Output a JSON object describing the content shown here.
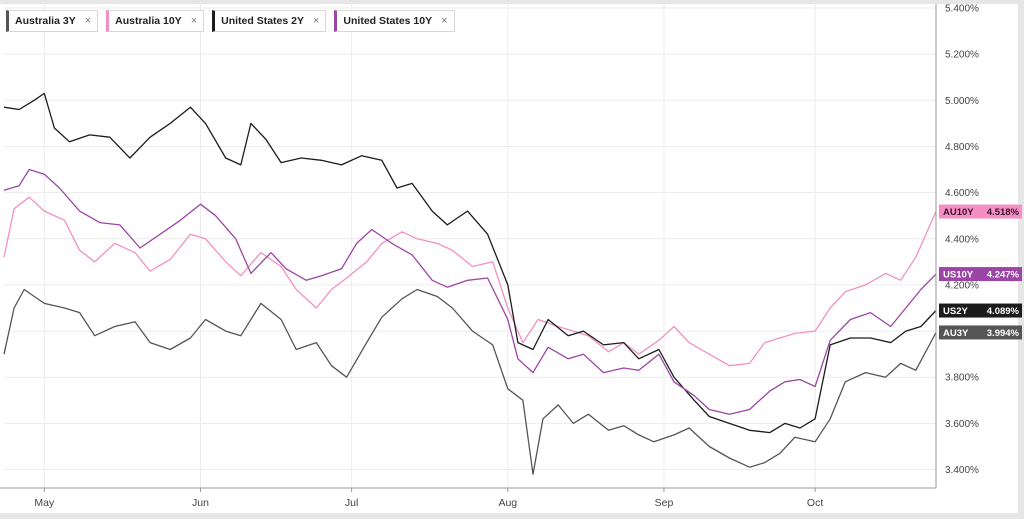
{
  "colors": {
    "australia_3y": "#555555",
    "australia_10y": "#f48fc4",
    "united_states_2y": "#1c1c1c",
    "united_states_10y": "#9b45a5"
  },
  "legend": [
    {
      "label": "Australia 3Y",
      "color": "#555555",
      "remove": "×"
    },
    {
      "label": "Australia 10Y",
      "color": "#f48fc4",
      "remove": "×"
    },
    {
      "label": "United States 2Y",
      "color": "#1c1c1c",
      "remove": "×"
    },
    {
      "label": "United States 10Y",
      "color": "#9b45a5",
      "remove": "×"
    }
  ],
  "chart_data": {
    "type": "line",
    "title": "",
    "xlabel": "",
    "ylabel": "",
    "ylim": [
      3.32,
      5.4
    ],
    "y_ticks": [
      {
        "value": 3.4,
        "label": "3.400%"
      },
      {
        "value": 3.6,
        "label": "3.600%"
      },
      {
        "value": 3.8,
        "label": "3.800%"
      },
      {
        "value": 4.0,
        "label": "4.000%"
      },
      {
        "value": 4.2,
        "label": "4.200%"
      },
      {
        "value": 4.4,
        "label": "4.400%"
      },
      {
        "value": 4.6,
        "label": "4.600%"
      },
      {
        "value": 4.8,
        "label": "4.800%"
      },
      {
        "value": 5.0,
        "label": "5.000%"
      },
      {
        "value": 5.2,
        "label": "5.200%"
      },
      {
        "value": 5.4,
        "label": "5.400%"
      }
    ],
    "x_range": [
      "2024-04-23",
      "2024-10-25"
    ],
    "x_ticks": [
      {
        "date": "2024-05-01",
        "label": "May"
      },
      {
        "date": "2024-06-01",
        "label": "Jun"
      },
      {
        "date": "2024-07-01",
        "label": "Jul"
      },
      {
        "date": "2024-08-01",
        "label": "Aug"
      },
      {
        "date": "2024-09-01",
        "label": "Sep"
      },
      {
        "date": "2024-10-01",
        "label": "Oct"
      }
    ],
    "grid": true,
    "legend_position": "top-left",
    "series": [
      {
        "name": "Australia 3Y",
        "color": "#555555",
        "tag": "AU3Y",
        "last_label": "3.994%",
        "points": [
          [
            "2024-04-23",
            3.9
          ],
          [
            "2024-04-25",
            4.1
          ],
          [
            "2024-04-27",
            4.18
          ],
          [
            "2024-05-01",
            4.12
          ],
          [
            "2024-05-05",
            4.1
          ],
          [
            "2024-05-08",
            4.08
          ],
          [
            "2024-05-11",
            3.98
          ],
          [
            "2024-05-15",
            4.02
          ],
          [
            "2024-05-19",
            4.04
          ],
          [
            "2024-05-22",
            3.95
          ],
          [
            "2024-05-26",
            3.92
          ],
          [
            "2024-05-30",
            3.97
          ],
          [
            "2024-06-02",
            4.05
          ],
          [
            "2024-06-06",
            4.0
          ],
          [
            "2024-06-09",
            3.98
          ],
          [
            "2024-06-13",
            4.12
          ],
          [
            "2024-06-17",
            4.05
          ],
          [
            "2024-06-20",
            3.92
          ],
          [
            "2024-06-24",
            3.95
          ],
          [
            "2024-06-27",
            3.85
          ],
          [
            "2024-06-30",
            3.8
          ],
          [
            "2024-07-04",
            3.95
          ],
          [
            "2024-07-07",
            4.06
          ],
          [
            "2024-07-11",
            4.14
          ],
          [
            "2024-07-14",
            4.18
          ],
          [
            "2024-07-18",
            4.15
          ],
          [
            "2024-07-21",
            4.1
          ],
          [
            "2024-07-25",
            4.0
          ],
          [
            "2024-07-29",
            3.94
          ],
          [
            "2024-08-01",
            3.75
          ],
          [
            "2024-08-04",
            3.7
          ],
          [
            "2024-08-06",
            3.38
          ],
          [
            "2024-08-08",
            3.62
          ],
          [
            "2024-08-11",
            3.68
          ],
          [
            "2024-08-14",
            3.6
          ],
          [
            "2024-08-17",
            3.64
          ],
          [
            "2024-08-21",
            3.57
          ],
          [
            "2024-08-24",
            3.59
          ],
          [
            "2024-08-27",
            3.55
          ],
          [
            "2024-08-30",
            3.52
          ],
          [
            "2024-09-03",
            3.55
          ],
          [
            "2024-09-06",
            3.58
          ],
          [
            "2024-09-10",
            3.5
          ],
          [
            "2024-09-14",
            3.45
          ],
          [
            "2024-09-18",
            3.41
          ],
          [
            "2024-09-21",
            3.43
          ],
          [
            "2024-09-24",
            3.47
          ],
          [
            "2024-09-27",
            3.54
          ],
          [
            "2024-10-01",
            3.52
          ],
          [
            "2024-10-04",
            3.62
          ],
          [
            "2024-10-07",
            3.78
          ],
          [
            "2024-10-11",
            3.82
          ],
          [
            "2024-10-15",
            3.8
          ],
          [
            "2024-10-18",
            3.86
          ],
          [
            "2024-10-21",
            3.83
          ],
          [
            "2024-10-25",
            3.994
          ]
        ]
      },
      {
        "name": "Australia 10Y",
        "color": "#f48fc4",
        "tag": "AU10Y",
        "last_label": "4.518%",
        "points": [
          [
            "2024-04-23",
            4.32
          ],
          [
            "2024-04-25",
            4.53
          ],
          [
            "2024-04-28",
            4.58
          ],
          [
            "2024-05-01",
            4.52
          ],
          [
            "2024-05-05",
            4.48
          ],
          [
            "2024-05-08",
            4.35
          ],
          [
            "2024-05-11",
            4.3
          ],
          [
            "2024-05-15",
            4.38
          ],
          [
            "2024-05-19",
            4.34
          ],
          [
            "2024-05-22",
            4.26
          ],
          [
            "2024-05-26",
            4.31
          ],
          [
            "2024-05-30",
            4.42
          ],
          [
            "2024-06-02",
            4.4
          ],
          [
            "2024-06-06",
            4.3
          ],
          [
            "2024-06-09",
            4.24
          ],
          [
            "2024-06-13",
            4.34
          ],
          [
            "2024-06-17",
            4.28
          ],
          [
            "2024-06-20",
            4.18
          ],
          [
            "2024-06-24",
            4.1
          ],
          [
            "2024-06-27",
            4.18
          ],
          [
            "2024-06-30",
            4.23
          ],
          [
            "2024-07-04",
            4.3
          ],
          [
            "2024-07-07",
            4.38
          ],
          [
            "2024-07-11",
            4.43
          ],
          [
            "2024-07-14",
            4.4
          ],
          [
            "2024-07-18",
            4.38
          ],
          [
            "2024-07-21",
            4.35
          ],
          [
            "2024-07-25",
            4.28
          ],
          [
            "2024-07-29",
            4.3
          ],
          [
            "2024-08-01",
            4.1
          ],
          [
            "2024-08-04",
            3.95
          ],
          [
            "2024-08-07",
            4.05
          ],
          [
            "2024-08-11",
            4.02
          ],
          [
            "2024-08-14",
            4.0
          ],
          [
            "2024-08-17",
            3.98
          ],
          [
            "2024-08-21",
            3.91
          ],
          [
            "2024-08-24",
            3.95
          ],
          [
            "2024-08-27",
            3.9
          ],
          [
            "2024-08-31",
            3.96
          ],
          [
            "2024-09-03",
            4.02
          ],
          [
            "2024-09-06",
            3.95
          ],
          [
            "2024-09-10",
            3.9
          ],
          [
            "2024-09-14",
            3.85
          ],
          [
            "2024-09-18",
            3.86
          ],
          [
            "2024-09-21",
            3.95
          ],
          [
            "2024-09-24",
            3.97
          ],
          [
            "2024-09-27",
            3.99
          ],
          [
            "2024-10-01",
            4.0
          ],
          [
            "2024-10-04",
            4.1
          ],
          [
            "2024-10-07",
            4.17
          ],
          [
            "2024-10-11",
            4.2
          ],
          [
            "2024-10-15",
            4.25
          ],
          [
            "2024-10-18",
            4.22
          ],
          [
            "2024-10-21",
            4.32
          ],
          [
            "2024-10-25",
            4.518
          ]
        ]
      },
      {
        "name": "United States 2Y",
        "color": "#1c1c1c",
        "tag": "US2Y",
        "last_label": "4.089%",
        "points": [
          [
            "2024-04-23",
            4.97
          ],
          [
            "2024-04-26",
            4.96
          ],
          [
            "2024-04-29",
            5.0
          ],
          [
            "2024-05-01",
            5.03
          ],
          [
            "2024-05-03",
            4.88
          ],
          [
            "2024-05-06",
            4.82
          ],
          [
            "2024-05-10",
            4.85
          ],
          [
            "2024-05-14",
            4.84
          ],
          [
            "2024-05-18",
            4.75
          ],
          [
            "2024-05-22",
            4.84
          ],
          [
            "2024-05-26",
            4.9
          ],
          [
            "2024-05-30",
            4.97
          ],
          [
            "2024-06-02",
            4.9
          ],
          [
            "2024-06-06",
            4.75
          ],
          [
            "2024-06-09",
            4.72
          ],
          [
            "2024-06-11",
            4.9
          ],
          [
            "2024-06-14",
            4.83
          ],
          [
            "2024-06-17",
            4.73
          ],
          [
            "2024-06-21",
            4.75
          ],
          [
            "2024-06-25",
            4.74
          ],
          [
            "2024-06-29",
            4.72
          ],
          [
            "2024-07-03",
            4.76
          ],
          [
            "2024-07-07",
            4.74
          ],
          [
            "2024-07-10",
            4.62
          ],
          [
            "2024-07-13",
            4.64
          ],
          [
            "2024-07-17",
            4.52
          ],
          [
            "2024-07-20",
            4.46
          ],
          [
            "2024-07-24",
            4.52
          ],
          [
            "2024-07-28",
            4.42
          ],
          [
            "2024-08-01",
            4.2
          ],
          [
            "2024-08-03",
            3.95
          ],
          [
            "2024-08-06",
            3.92
          ],
          [
            "2024-08-09",
            4.05
          ],
          [
            "2024-08-13",
            3.98
          ],
          [
            "2024-08-16",
            4.0
          ],
          [
            "2024-08-20",
            3.94
          ],
          [
            "2024-08-24",
            3.95
          ],
          [
            "2024-08-27",
            3.88
          ],
          [
            "2024-08-31",
            3.92
          ],
          [
            "2024-09-03",
            3.8
          ],
          [
            "2024-09-07",
            3.7
          ],
          [
            "2024-09-10",
            3.63
          ],
          [
            "2024-09-14",
            3.6
          ],
          [
            "2024-09-18",
            3.57
          ],
          [
            "2024-09-22",
            3.56
          ],
          [
            "2024-09-25",
            3.6
          ],
          [
            "2024-09-28",
            3.58
          ],
          [
            "2024-10-01",
            3.62
          ],
          [
            "2024-10-04",
            3.94
          ],
          [
            "2024-10-08",
            3.97
          ],
          [
            "2024-10-12",
            3.97
          ],
          [
            "2024-10-16",
            3.95
          ],
          [
            "2024-10-19",
            4.0
          ],
          [
            "2024-10-22",
            4.02
          ],
          [
            "2024-10-25",
            4.089
          ]
        ]
      },
      {
        "name": "United States 10Y",
        "color": "#9b45a5",
        "tag": "US10Y",
        "last_label": "4.247%",
        "points": [
          [
            "2024-04-23",
            4.61
          ],
          [
            "2024-04-26",
            4.63
          ],
          [
            "2024-04-28",
            4.7
          ],
          [
            "2024-05-01",
            4.68
          ],
          [
            "2024-05-04",
            4.62
          ],
          [
            "2024-05-08",
            4.52
          ],
          [
            "2024-05-12",
            4.47
          ],
          [
            "2024-05-16",
            4.46
          ],
          [
            "2024-05-20",
            4.36
          ],
          [
            "2024-05-24",
            4.42
          ],
          [
            "2024-05-28",
            4.48
          ],
          [
            "2024-06-01",
            4.55
          ],
          [
            "2024-06-04",
            4.5
          ],
          [
            "2024-06-08",
            4.4
          ],
          [
            "2024-06-11",
            4.25
          ],
          [
            "2024-06-15",
            4.34
          ],
          [
            "2024-06-18",
            4.27
          ],
          [
            "2024-06-22",
            4.22
          ],
          [
            "2024-06-25",
            4.24
          ],
          [
            "2024-06-29",
            4.27
          ],
          [
            "2024-07-02",
            4.38
          ],
          [
            "2024-07-05",
            4.44
          ],
          [
            "2024-07-09",
            4.38
          ],
          [
            "2024-07-13",
            4.33
          ],
          [
            "2024-07-17",
            4.22
          ],
          [
            "2024-07-20",
            4.19
          ],
          [
            "2024-07-24",
            4.22
          ],
          [
            "2024-07-28",
            4.23
          ],
          [
            "2024-08-01",
            4.05
          ],
          [
            "2024-08-03",
            3.88
          ],
          [
            "2024-08-06",
            3.82
          ],
          [
            "2024-08-09",
            3.93
          ],
          [
            "2024-08-13",
            3.88
          ],
          [
            "2024-08-16",
            3.9
          ],
          [
            "2024-08-20",
            3.82
          ],
          [
            "2024-08-24",
            3.84
          ],
          [
            "2024-08-27",
            3.83
          ],
          [
            "2024-08-31",
            3.9
          ],
          [
            "2024-09-03",
            3.78
          ],
          [
            "2024-09-07",
            3.72
          ],
          [
            "2024-09-10",
            3.66
          ],
          [
            "2024-09-14",
            3.64
          ],
          [
            "2024-09-18",
            3.66
          ],
          [
            "2024-09-22",
            3.74
          ],
          [
            "2024-09-25",
            3.78
          ],
          [
            "2024-09-28",
            3.79
          ],
          [
            "2024-10-01",
            3.76
          ],
          [
            "2024-10-04",
            3.96
          ],
          [
            "2024-10-08",
            4.05
          ],
          [
            "2024-10-12",
            4.08
          ],
          [
            "2024-10-16",
            4.02
          ],
          [
            "2024-10-19",
            4.1
          ],
          [
            "2024-10-22",
            4.18
          ],
          [
            "2024-10-25",
            4.247
          ]
        ]
      }
    ]
  }
}
